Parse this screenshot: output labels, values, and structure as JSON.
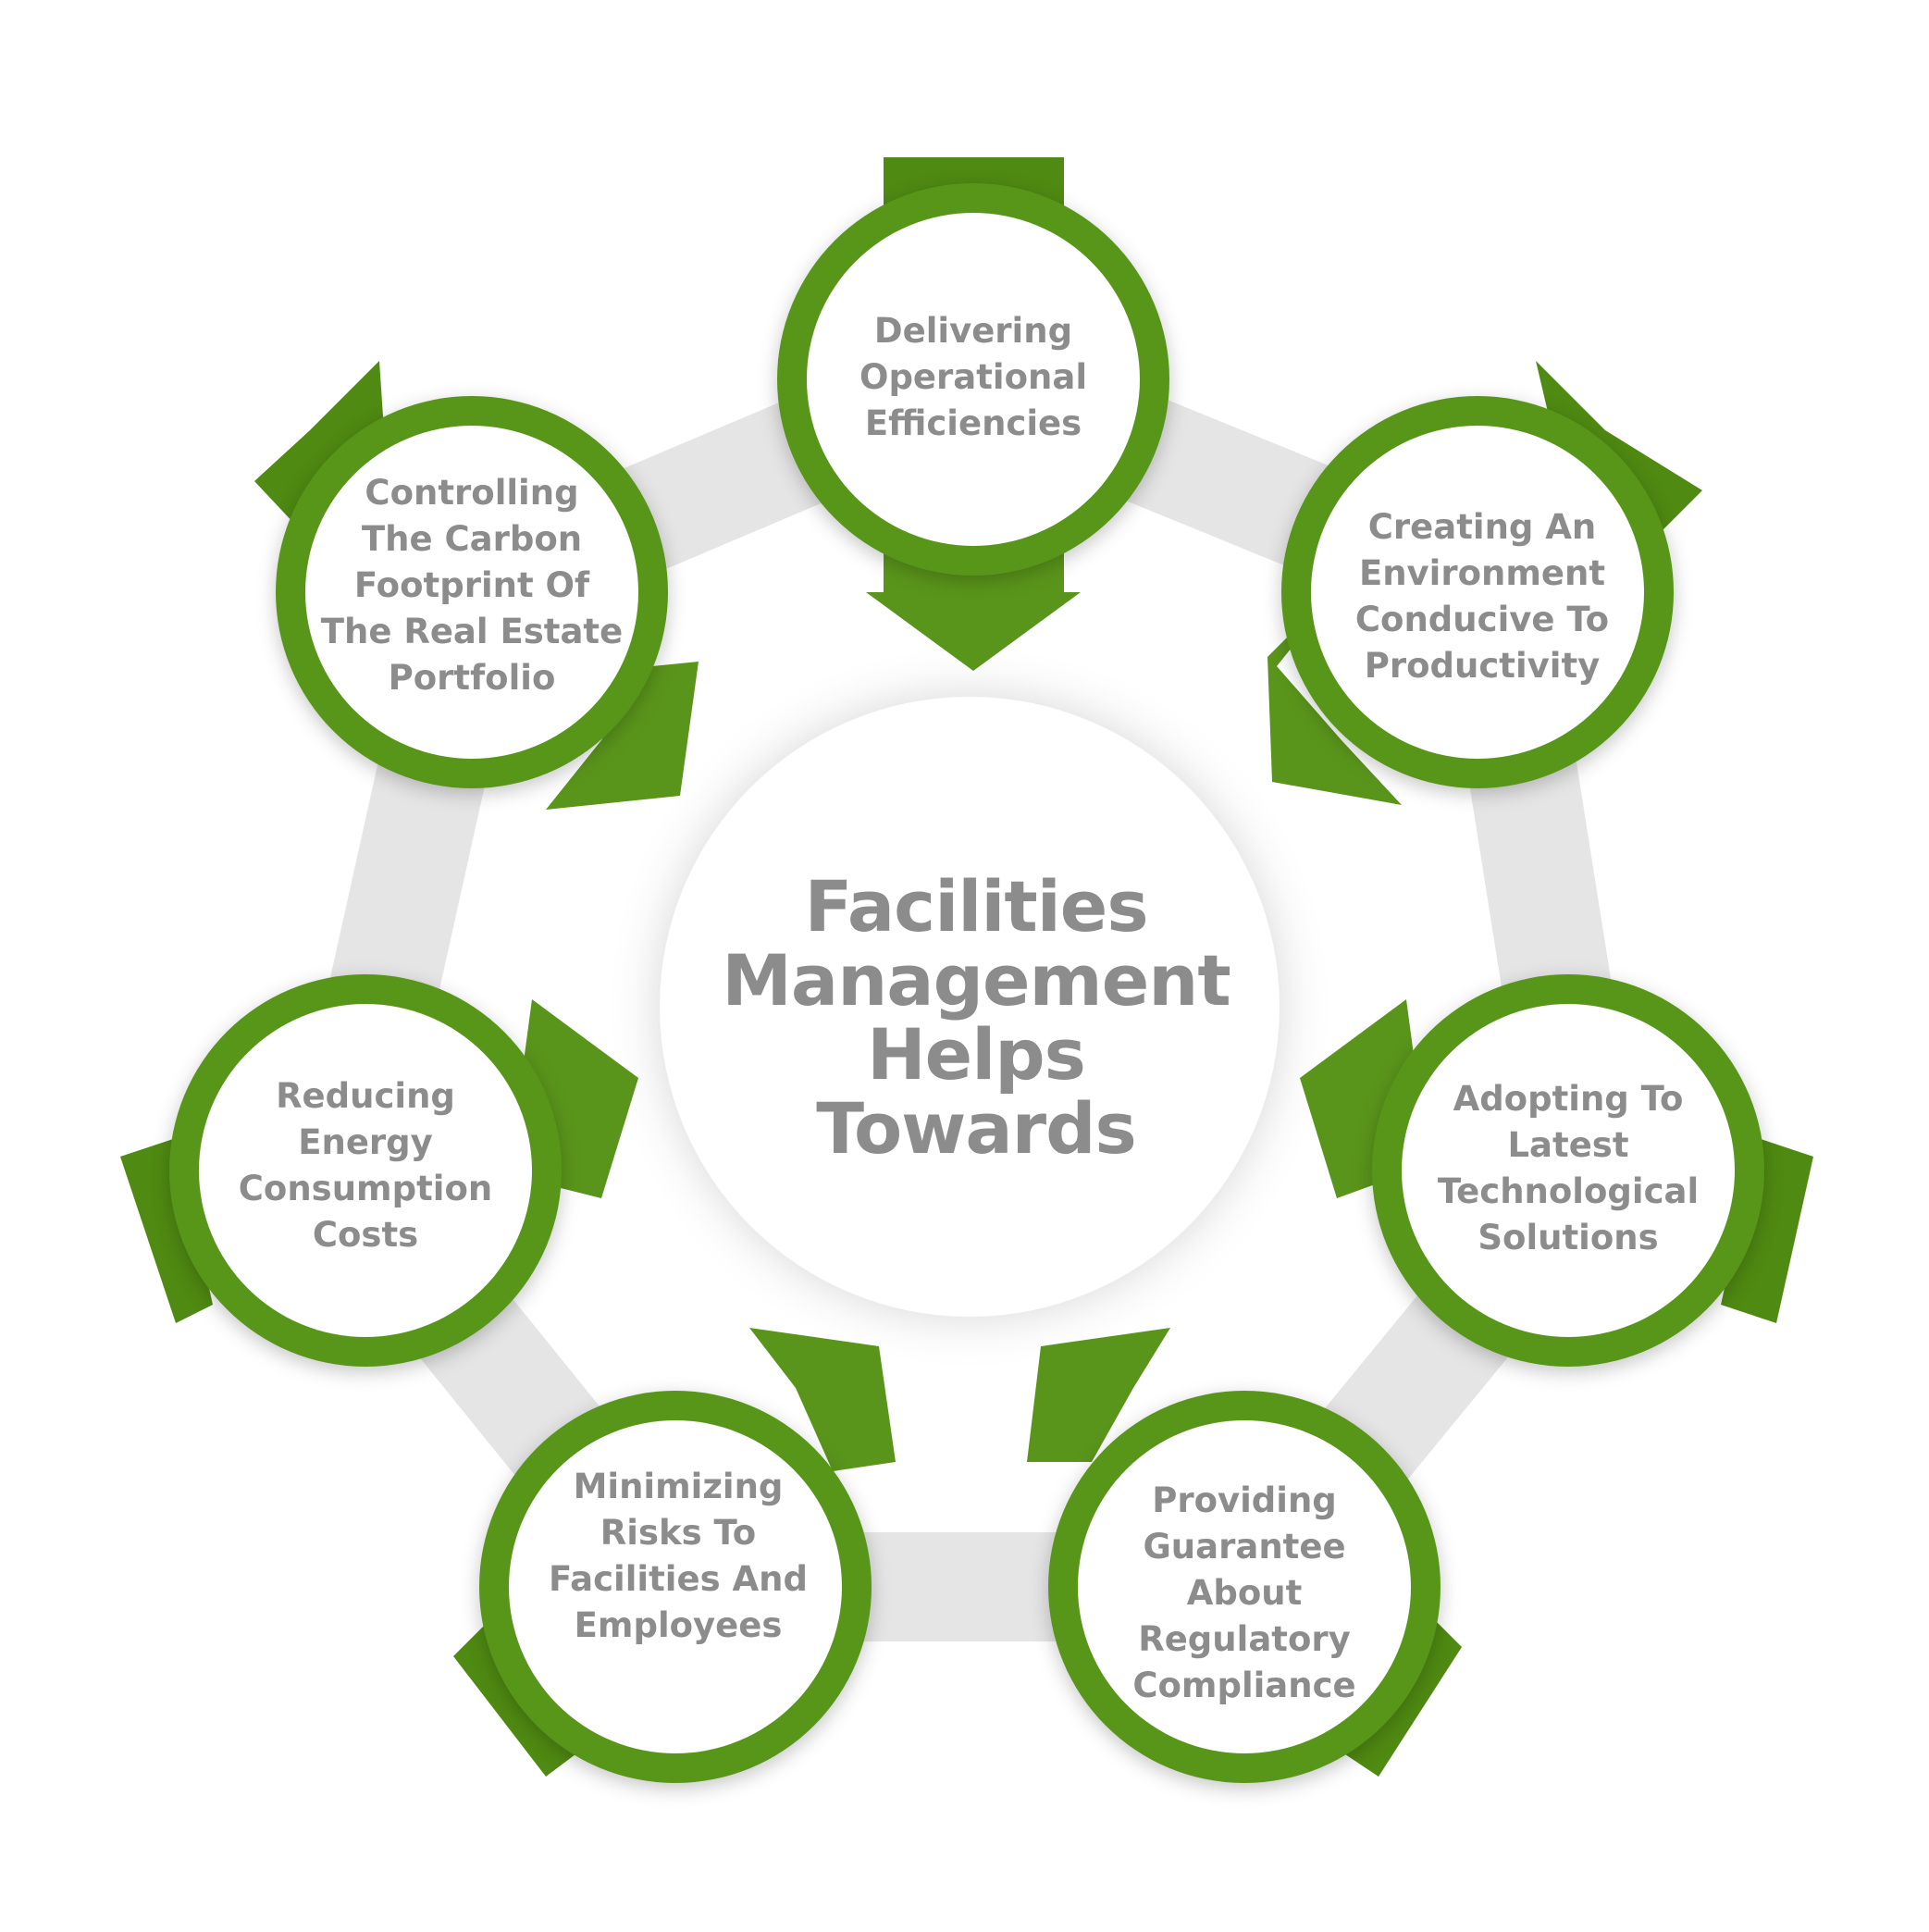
{
  "center": {
    "title": "Facilities\nManagement\nHelps\nTowards"
  },
  "nodes": [
    {
      "id": "delivering",
      "label": "Delivering\nOperational\nEfficiencies"
    },
    {
      "id": "creating",
      "label": "Creating An\nEnvironment\nConducive To\nProductivity"
    },
    {
      "id": "adopting",
      "label": "Adopting To\nLatest\nTechnological\nSolutions"
    },
    {
      "id": "providing",
      "label": "Providing\nGuarantee\nAbout\nRegulatory\nCompliance"
    },
    {
      "id": "minimizing",
      "label": "Minimizing\nRisks To\nFacilities And\nEmployees"
    },
    {
      "id": "reducing",
      "label": "Reducing\nEnergy\nConsumption\nCosts"
    },
    {
      "id": "controlling",
      "label": "Controlling\nThe Carbon\nFootprint Of\nThe Real Estate\nPortfolio"
    }
  ],
  "colors": {
    "accent_green": "#58961a",
    "text_gray": "#8c8c8c",
    "ring_band": "#e5e5e5"
  }
}
